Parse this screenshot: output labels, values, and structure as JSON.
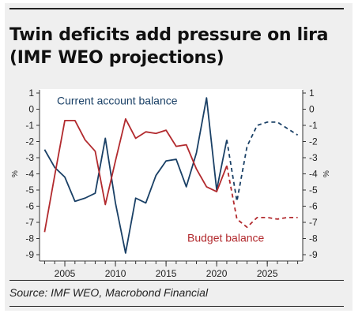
{
  "chart_data": {
    "type": "line",
    "title": "Twin deficits add pressure on lira (IMF WEO projections)",
    "ylabel_left": "%",
    "ylabel_right": "%",
    "ylim": [
      -9,
      1
    ],
    "yticks": [
      1,
      0,
      -1,
      -2,
      -3,
      -4,
      -5,
      -6,
      -7,
      -8,
      -9
    ],
    "ytick_labels": [
      "1",
      "0",
      "-1",
      "-2",
      "-3",
      "-4",
      "-5",
      "-6",
      "-7",
      "-8",
      "-9"
    ],
    "xlim": [
      2002.5,
      2028.5
    ],
    "xticks": [
      2005,
      2010,
      2015,
      2020,
      2025
    ],
    "xtick_labels": [
      "2005",
      "2010",
      "2015",
      "2020",
      "2025"
    ],
    "grid": false,
    "series": [
      {
        "name": "Current account balance",
        "color": "#1a4066",
        "x": [
          2003,
          2004,
          2005,
          2006,
          2007,
          2008,
          2009,
          2010,
          2011,
          2012,
          2013,
          2014,
          2015,
          2016,
          2017,
          2018,
          2019,
          2020,
          2021,
          2022,
          2023,
          2024,
          2025,
          2026,
          2027,
          2028
        ],
        "values": [
          -2.5,
          -3.6,
          -4.2,
          -5.7,
          -5.5,
          -5.2,
          -1.8,
          -5.8,
          -8.9,
          -5.5,
          -5.8,
          -4.1,
          -3.2,
          -3.1,
          -4.8,
          -2.7,
          0.7,
          -5.0,
          -1.9,
          -5.7,
          -2.3,
          -1.0,
          -0.8,
          -0.8,
          -1.2,
          -1.6
        ],
        "projected_from_index": 18
      },
      {
        "name": "Budget balance",
        "color": "#b22a2e",
        "x": [
          2003,
          2004,
          2005,
          2006,
          2007,
          2008,
          2009,
          2010,
          2011,
          2012,
          2013,
          2014,
          2015,
          2016,
          2017,
          2018,
          2019,
          2020,
          2021,
          2022,
          2023,
          2024,
          2025,
          2026,
          2027,
          2028
        ],
        "values": [
          -7.6,
          -4.1,
          -0.7,
          -0.7,
          -1.9,
          -2.6,
          -5.9,
          -3.2,
          -0.6,
          -1.8,
          -1.4,
          -1.5,
          -1.3,
          -2.3,
          -2.2,
          -3.7,
          -4.8,
          -5.1,
          -3.5,
          -6.8,
          -7.3,
          -6.7,
          -6.7,
          -6.8,
          -6.7,
          -6.7
        ],
        "projected_from_index": 18
      }
    ],
    "annotations": [
      {
        "text": "Current account balance",
        "series": 0
      },
      {
        "text": "Budget balance",
        "series": 1
      }
    ]
  },
  "source": "Source: IMF WEO, Macrobond Financial"
}
